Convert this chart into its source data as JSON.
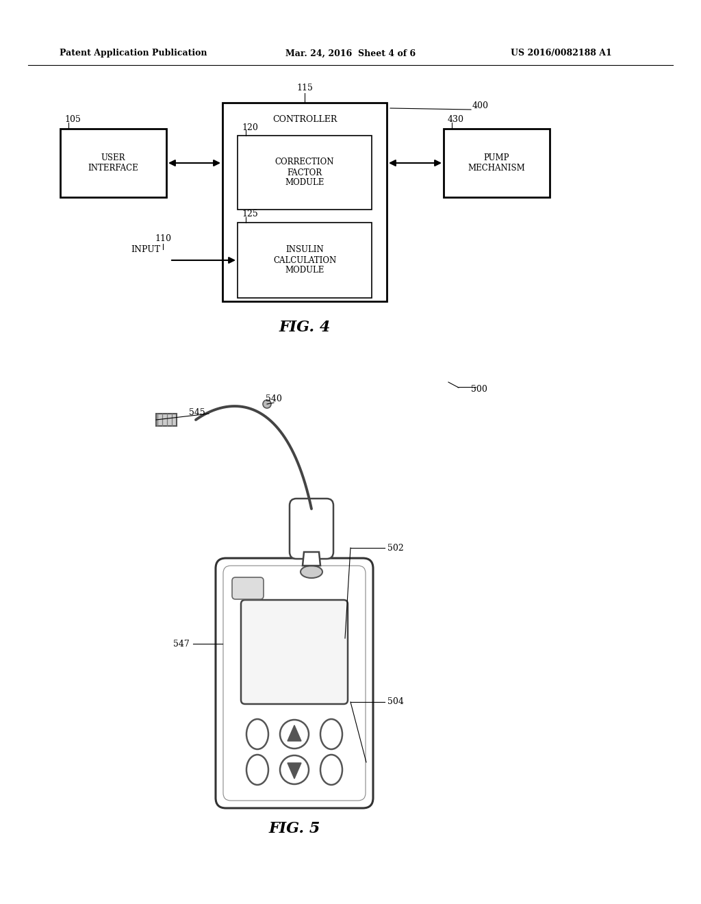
{
  "bg_color": "#ffffff",
  "header_left": "Patent Application Publication",
  "header_mid": "Mar. 24, 2016  Sheet 4 of 6",
  "header_right": "US 2016/0082188 A1",
  "fig4_label": "FIG. 4",
  "fig5_label": "FIG. 5",
  "ref_400": "400",
  "ref_115": "115",
  "ref_105": "105",
  "ref_120": "120",
  "ref_125": "125",
  "ref_110": "110",
  "ref_430": "430",
  "ref_500": "500",
  "ref_540": "540",
  "ref_545": "545",
  "ref_502": "502",
  "ref_504": "504",
  "ref_547": "547",
  "controller_label": "CONTROLLER",
  "correction_factor_label": "CORRECTION\nFACTOR\nMODULE",
  "insulin_calc_label": "INSULIN\nCALCULATION\nMODULE",
  "user_interface_label": "USER\nINTERFACE",
  "pump_mechanism_label": "PUMP\nMECHANISM",
  "input_label": "INPUT",
  "fig_width": 10.24,
  "fig_height": 13.2,
  "dpi": 100
}
